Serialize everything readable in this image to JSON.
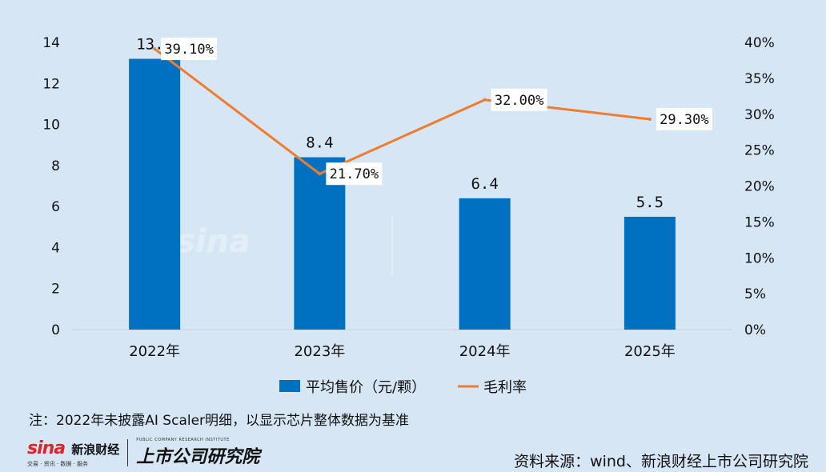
{
  "chart_data": {
    "type": "bar+line",
    "categories": [
      "2022年",
      "2023年",
      "2024年",
      "2025年"
    ],
    "series": [
      {
        "name": "平均售价（元/颗）",
        "type": "bar",
        "axis": "left",
        "values": [
          13.2,
          8.4,
          6.4,
          5.5
        ],
        "labels": [
          "13.2",
          "8.4",
          "6.4",
          "5.5"
        ],
        "color": "#0070c0"
      },
      {
        "name": "毛利率",
        "type": "line",
        "axis": "right",
        "values": [
          39.1,
          21.7,
          32.0,
          29.3
        ],
        "labels": [
          "39.10%",
          "21.70%",
          "32.00%",
          "29.30%"
        ],
        "color": "#ed7d31"
      }
    ],
    "y_left": {
      "ylim": [
        0,
        14
      ],
      "ticks": [
        "0",
        "2",
        "4",
        "6",
        "8",
        "10",
        "12",
        "14"
      ]
    },
    "y_right": {
      "ylim": [
        0,
        40
      ],
      "ticks": [
        "0%",
        "5%",
        "10%",
        "15%",
        "20%",
        "25%",
        "30%",
        "35%",
        "40%"
      ]
    },
    "grid": false,
    "legend_position": "bottom"
  },
  "note": "注：2022年未披露AI Scaler明细，以显示芯片整体数据为基准",
  "source": "资料来源：wind、新浪财经上市公司研究院",
  "logo": {
    "sina": "sina",
    "sina_brand": "新浪财经",
    "sina_sub": "交易 · 资讯 · 数据 · 服务",
    "institute": "上市公司研究院",
    "institute_en": "PUBLIC COMPANY RESEARCH INSTITUTE"
  }
}
